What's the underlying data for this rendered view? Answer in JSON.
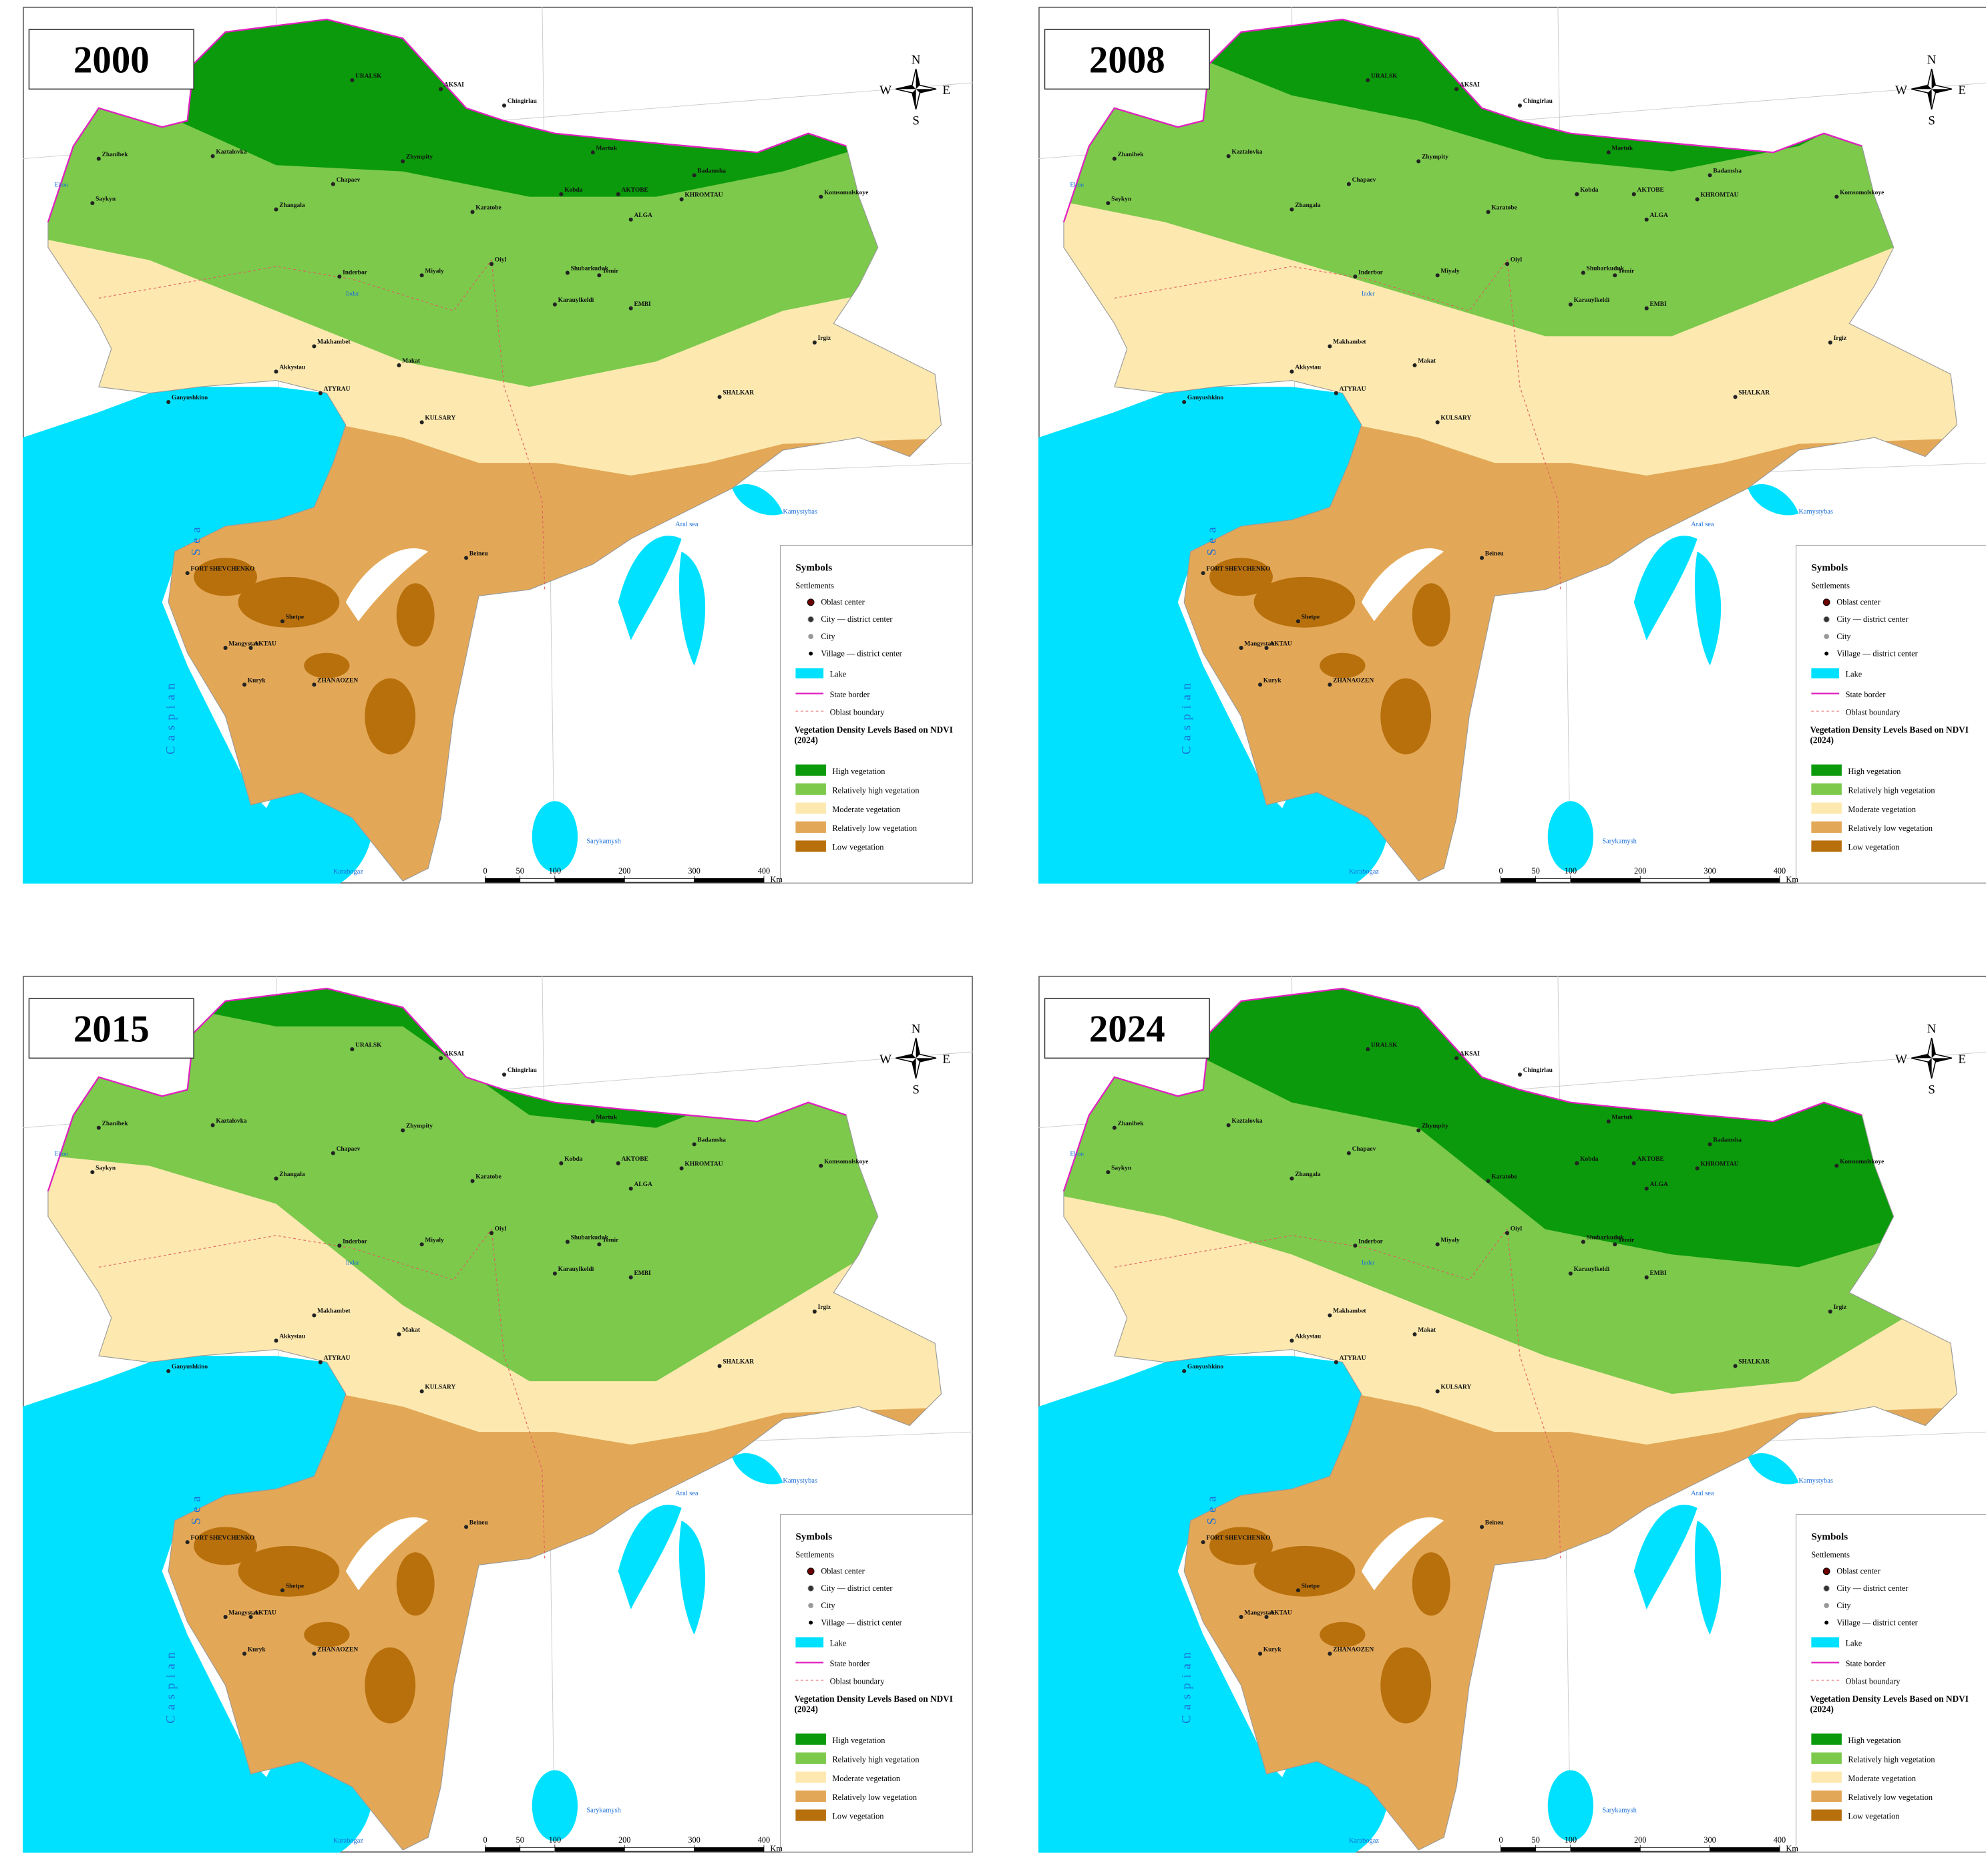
{
  "panels": [
    {
      "year": "2000"
    },
    {
      "year": "2008"
    },
    {
      "year": "2015"
    },
    {
      "year": "2024"
    }
  ],
  "compass": {
    "north": "N",
    "south": "S",
    "east": "E",
    "west": "W"
  },
  "places": [
    "URALSK",
    "AKSAI",
    "Chingirlau",
    "Zhanibek",
    "Kaztalovka",
    "Chapaev",
    "Zhympity",
    "Saykyn",
    "Zhangala",
    "Karatobe",
    "Martuk",
    "AKTOBE",
    "Kobda",
    "Badamsha",
    "KHROMTAU",
    "ALGA",
    "Komsomolskoye",
    "Inderbor",
    "Miyaly",
    "Oiyl",
    "Shubarkuduk",
    "Temir",
    "Karauylkeldi",
    "EMBI",
    "Irgiz",
    "Makhambet",
    "Akkystau",
    "Makat",
    "ATYRAU",
    "Ganyushkino",
    "KULSARY",
    "SHALKAR",
    "Beineu",
    "FORT SHEVCHENKO",
    "Shetpe",
    "Mangystau",
    "AKTAU",
    "Kuryk",
    "ZHANAOZEN"
  ],
  "water_labels": [
    "Caspian",
    "Sea",
    "Aral sea",
    "Kamystybas",
    "Sarykamysh",
    "Karabogaz",
    "Elton",
    "Inder"
  ],
  "legend": {
    "title": "Symbols",
    "settlements_heading": "Settlements",
    "settlements": [
      "Oblast center",
      "City — district center",
      "City",
      "Village — district center"
    ],
    "lake": "Lake",
    "lake_color": "#00e1ff",
    "state_border": "State border",
    "state_border_color": "#e020c0",
    "oblast_boundary": "Oblast boundary",
    "vegetation_title": "Vegetation Density Levels Based on NDVI (2024)",
    "vegetation": [
      {
        "label": "High vegetation",
        "color": "#0b9a0b"
      },
      {
        "label": "Relatively high vegetation",
        "color": "#7cc94c"
      },
      {
        "label": "Moderate vegetation",
        "color": "#fde9b0"
      },
      {
        "label": "Relatively low vegetation",
        "color": "#e3a857"
      },
      {
        "label": "Low vegetation",
        "color": "#b8700d"
      }
    ]
  },
  "scale": {
    "ticks": [
      0,
      50,
      100,
      200,
      300,
      400
    ],
    "unit": "Km"
  }
}
